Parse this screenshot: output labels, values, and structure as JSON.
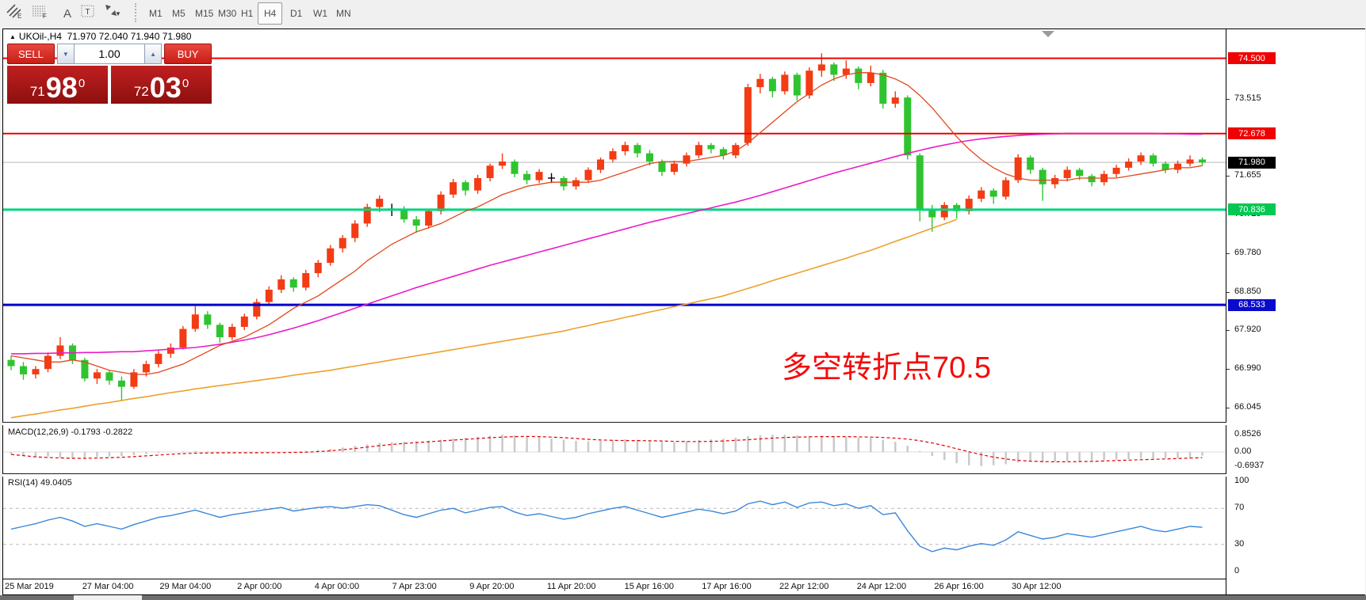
{
  "toolbar": {
    "tools": [
      {
        "name": "equidistant-channel-tool",
        "glyph": "E"
      },
      {
        "name": "fibonacci-tool",
        "glyph": "F"
      },
      {
        "name": "text-tool",
        "glyph": "A"
      },
      {
        "name": "text-label-tool",
        "glyph": "T"
      },
      {
        "name": "arrows-tool",
        "glyph": "arrows"
      }
    ],
    "timeframes": [
      "M1",
      "M5",
      "M15",
      "M30",
      "H1",
      "H4",
      "D1",
      "W1",
      "MN"
    ],
    "active_timeframe": "H4"
  },
  "chart_header": {
    "symbol": "UKOil-,H4",
    "ohlc": "71.970 72.040 71.940 71.980"
  },
  "trade_panel": {
    "sell_label": "SELL",
    "buy_label": "BUY",
    "volume": "1.00",
    "sell_price": {
      "small": "71",
      "big": "98",
      "sup": "0"
    },
    "buy_price": {
      "small": "72",
      "big": "03",
      "sup": "0"
    }
  },
  "annotation": {
    "text": "多空转折点70.5",
    "color": "#f40b0b"
  },
  "price_axis": {
    "ticks": [
      {
        "label": "73.515",
        "price": 73.515
      },
      {
        "label": "72.585",
        "price": 72.585,
        "partial": true
      },
      {
        "label": "71.655",
        "price": 71.655
      },
      {
        "label": "70.725",
        "price": 70.725,
        "partial": true
      },
      {
        "label": "69.780",
        "price": 69.78
      },
      {
        "label": "68.850",
        "price": 68.85
      },
      {
        "label": "67.920",
        "price": 67.92
      },
      {
        "label": "66.990",
        "price": 66.99
      },
      {
        "label": "66.045",
        "price": 66.045
      }
    ]
  },
  "levels": [
    {
      "label": "74.500",
      "price": 74.5,
      "line_color": "#f00000",
      "badge_color": "#f00000",
      "width": 2
    },
    {
      "label": "72.678",
      "price": 72.678,
      "line_color": "#f00000",
      "badge_color": "#f00000",
      "width": 2
    },
    {
      "label": "71.980",
      "price": 71.98,
      "line_color": "#b8b8b8",
      "badge_color": "#000000",
      "width": 1
    },
    {
      "label": "70.836",
      "price": 70.836,
      "line_color": "#00d57d",
      "badge_color": "#00c853",
      "width": 3
    },
    {
      "label": "68.533",
      "price": 68.533,
      "line_color": "#0000cc",
      "badge_color": "#0a0acd",
      "width": 3
    }
  ],
  "time_axis": {
    "labels": [
      "25 Mar 2019",
      "27 Mar 04:00",
      "29 Mar 04:00",
      "2 Apr 00:00",
      "4 Apr 00:00",
      "7 Apr 23:00",
      "9 Apr 20:00",
      "11 Apr 20:00",
      "15 Apr 16:00",
      "17 Apr 16:00",
      "22 Apr 12:00",
      "24 Apr 12:00",
      "26 Apr 16:00",
      "30 Apr 12:00"
    ]
  },
  "macd_panel": {
    "label": "MACD(12,26,9) -0.1793 -0.2822",
    "scale": [
      {
        "label": "0.8526",
        "value": 0.8526
      },
      {
        "label": "0.00",
        "value": 0
      },
      {
        "label": "-0.6937",
        "value": -0.6937
      }
    ]
  },
  "rsi_panel": {
    "label": "RSI(14) 49.0405",
    "scale": [
      {
        "label": "100",
        "value": 100
      },
      {
        "label": "70",
        "value": 70
      },
      {
        "label": "30",
        "value": 30
      },
      {
        "label": "0",
        "value": 0
      }
    ],
    "guide_levels": [
      70,
      30
    ]
  },
  "chart_data": {
    "type": "candlestick",
    "symbol": "UKOil-",
    "period": "H4",
    "ohlc_last": {
      "open": 71.97,
      "high": 72.04,
      "low": 71.94,
      "close": 71.98
    },
    "price_range_visible": [
      65.8,
      74.9
    ],
    "colors": {
      "bull": "#f33b14",
      "bear": "#2fc42f",
      "doji": "#000000",
      "ma_fast": "#e0481c",
      "ma_medium": "#ea1cc8",
      "ma_slow": "#eda12c",
      "macd_hist": "#c9c9c9",
      "macd_signal": "#e00000",
      "rsi_line": "#3a87d9"
    },
    "candles": [
      [
        67.2,
        67.3,
        66.95,
        67.05
      ],
      [
        67.05,
        67.15,
        66.72,
        66.85
      ],
      [
        66.85,
        67.05,
        66.75,
        66.98
      ],
      [
        66.98,
        67.38,
        66.9,
        67.3
      ],
      [
        67.3,
        67.75,
        67.22,
        67.55
      ],
      [
        67.55,
        67.6,
        67.1,
        67.2
      ],
      [
        67.2,
        67.25,
        66.68,
        66.75
      ],
      [
        66.75,
        66.98,
        66.62,
        66.9
      ],
      [
        66.9,
        66.95,
        66.6,
        66.7
      ],
      [
        66.7,
        66.8,
        66.2,
        66.55
      ],
      [
        66.55,
        66.98,
        66.5,
        66.9
      ],
      [
        66.9,
        67.18,
        66.8,
        67.1
      ],
      [
        67.1,
        67.42,
        67.02,
        67.35
      ],
      [
        67.35,
        67.6,
        67.25,
        67.5
      ],
      [
        67.5,
        68.02,
        67.45,
        67.95
      ],
      [
        67.95,
        68.5,
        67.88,
        68.3
      ],
      [
        68.3,
        68.38,
        67.95,
        68.05
      ],
      [
        68.05,
        68.1,
        67.62,
        67.75
      ],
      [
        67.75,
        68.08,
        67.68,
        68.0
      ],
      [
        68.0,
        68.32,
        67.92,
        68.25
      ],
      [
        68.25,
        68.68,
        68.18,
        68.6
      ],
      [
        68.6,
        68.98,
        68.52,
        68.9
      ],
      [
        68.9,
        69.25,
        68.82,
        69.15
      ],
      [
        69.15,
        69.2,
        68.85,
        68.95
      ],
      [
        68.95,
        69.38,
        68.88,
        69.3
      ],
      [
        69.3,
        69.62,
        69.2,
        69.55
      ],
      [
        69.55,
        69.98,
        69.48,
        69.9
      ],
      [
        69.9,
        70.22,
        69.8,
        70.15
      ],
      [
        70.15,
        70.58,
        70.05,
        70.5
      ],
      [
        70.5,
        70.98,
        70.42,
        70.9
      ],
      [
        70.9,
        71.18,
        70.78,
        71.1
      ],
      [
        70.85,
        70.98,
        70.68,
        70.85
      ],
      [
        70.85,
        70.92,
        70.52,
        70.6
      ],
      [
        70.6,
        70.68,
        70.28,
        70.45
      ],
      [
        70.45,
        70.85,
        70.38,
        70.8
      ],
      [
        70.8,
        71.28,
        70.72,
        71.2
      ],
      [
        71.2,
        71.58,
        71.12,
        71.5
      ],
      [
        71.5,
        71.55,
        71.18,
        71.3
      ],
      [
        71.3,
        71.68,
        71.22,
        71.6
      ],
      [
        71.6,
        71.95,
        71.52,
        71.9
      ],
      [
        71.9,
        72.2,
        71.82,
        72.0
      ],
      [
        72.0,
        72.05,
        71.62,
        71.7
      ],
      [
        71.7,
        71.78,
        71.45,
        71.55
      ],
      [
        71.55,
        71.82,
        71.48,
        71.75
      ],
      [
        71.6,
        71.72,
        71.48,
        71.6
      ],
      [
        71.6,
        71.65,
        71.3,
        71.4
      ],
      [
        71.4,
        71.62,
        71.32,
        71.55
      ],
      [
        71.55,
        71.86,
        71.48,
        71.8
      ],
      [
        71.8,
        72.1,
        71.72,
        72.05
      ],
      [
        72.05,
        72.32,
        71.98,
        72.25
      ],
      [
        72.25,
        72.48,
        72.15,
        72.4
      ],
      [
        72.4,
        72.45,
        72.1,
        72.2
      ],
      [
        72.2,
        72.28,
        71.9,
        72.0
      ],
      [
        72.0,
        72.05,
        71.65,
        71.75
      ],
      [
        71.75,
        72.02,
        71.68,
        71.95
      ],
      [
        71.95,
        72.22,
        71.88,
        72.15
      ],
      [
        72.15,
        72.48,
        72.08,
        72.4
      ],
      [
        72.4,
        72.45,
        72.2,
        72.3
      ],
      [
        72.3,
        72.35,
        72.05,
        72.15
      ],
      [
        72.15,
        72.45,
        72.08,
        72.4
      ],
      [
        72.45,
        73.88,
        72.38,
        73.8
      ],
      [
        73.8,
        74.12,
        73.65,
        74.0
      ],
      [
        74.0,
        74.05,
        73.55,
        73.7
      ],
      [
        73.7,
        74.18,
        73.62,
        74.1
      ],
      [
        74.1,
        74.15,
        73.48,
        73.6
      ],
      [
        73.6,
        74.28,
        73.52,
        74.2
      ],
      [
        74.2,
        74.62,
        74.05,
        74.35
      ],
      [
        74.35,
        74.4,
        73.95,
        74.1
      ],
      [
        74.1,
        74.45,
        74.0,
        74.25
      ],
      [
        74.25,
        74.3,
        73.75,
        73.9
      ],
      [
        73.9,
        74.32,
        73.82,
        74.15
      ],
      [
        74.15,
        74.22,
        73.28,
        73.4
      ],
      [
        73.4,
        73.7,
        73.3,
        73.55
      ],
      [
        73.55,
        73.6,
        72.05,
        72.15
      ],
      [
        72.15,
        72.2,
        70.55,
        70.85
      ],
      [
        70.85,
        70.95,
        70.3,
        70.65
      ],
      [
        70.65,
        71.02,
        70.58,
        70.95
      ],
      [
        70.95,
        71.0,
        70.62,
        70.8
      ],
      [
        70.8,
        71.18,
        70.72,
        71.1
      ],
      [
        71.1,
        71.38,
        71.02,
        71.3
      ],
      [
        71.3,
        71.35,
        70.98,
        71.15
      ],
      [
        71.15,
        71.62,
        71.08,
        71.55
      ],
      [
        71.55,
        72.18,
        71.48,
        72.1
      ],
      [
        72.1,
        72.15,
        71.7,
        71.8
      ],
      [
        71.8,
        71.85,
        71.05,
        71.45
      ],
      [
        71.45,
        71.68,
        71.35,
        71.6
      ],
      [
        71.6,
        71.88,
        71.52,
        71.8
      ],
      [
        71.8,
        71.85,
        71.55,
        71.65
      ],
      [
        71.65,
        71.7,
        71.4,
        71.5
      ],
      [
        71.5,
        71.78,
        71.42,
        71.7
      ],
      [
        71.7,
        71.92,
        71.62,
        71.85
      ],
      [
        71.85,
        72.08,
        71.78,
        72.0
      ],
      [
        72.0,
        72.22,
        71.92,
        72.15
      ],
      [
        72.15,
        72.2,
        71.88,
        71.95
      ],
      [
        71.95,
        72.0,
        71.72,
        71.8
      ],
      [
        71.8,
        72.02,
        71.72,
        71.95
      ],
      [
        71.95,
        72.15,
        71.88,
        72.05
      ],
      [
        72.05,
        72.1,
        71.9,
        71.98
      ]
    ],
    "ma_fast": [
      67.3,
      67.25,
      67.2,
      67.15,
      67.15,
      67.2,
      67.15,
      67.05,
      66.95,
      66.9,
      66.85,
      66.85,
      66.9,
      67.0,
      67.1,
      67.25,
      67.4,
      67.55,
      67.65,
      67.75,
      67.9,
      68.05,
      68.25,
      68.45,
      68.6,
      68.75,
      68.95,
      69.15,
      69.35,
      69.6,
      69.8,
      70.0,
      70.15,
      70.3,
      70.4,
      70.5,
      70.65,
      70.8,
      70.9,
      71.05,
      71.2,
      71.3,
      71.4,
      71.45,
      71.5,
      71.5,
      71.5,
      71.5,
      71.55,
      71.65,
      71.75,
      71.85,
      71.95,
      72.0,
      72.0,
      72.0,
      72.05,
      72.1,
      72.15,
      72.25,
      72.45,
      72.7,
      72.95,
      73.2,
      73.45,
      73.65,
      73.85,
      74.0,
      74.1,
      74.15,
      74.15,
      74.1,
      74.0,
      73.85,
      73.6,
      73.3,
      72.95,
      72.6,
      72.3,
      72.05,
      71.85,
      71.7,
      71.6,
      71.55,
      71.55,
      71.55,
      71.55,
      71.6,
      71.6,
      71.6,
      71.6,
      71.65,
      71.7,
      71.75,
      71.8,
      71.85,
      71.85,
      71.9
    ],
    "ma_medium": [
      67.35,
      67.35,
      67.36,
      67.36,
      67.37,
      67.37,
      67.38,
      67.38,
      67.39,
      67.4,
      67.4,
      67.42,
      67.44,
      67.46,
      67.48,
      67.5,
      67.54,
      67.58,
      67.63,
      67.68,
      67.74,
      67.81,
      67.89,
      67.97,
      68.06,
      68.15,
      68.25,
      68.35,
      68.45,
      68.55,
      68.65,
      68.75,
      68.85,
      68.95,
      69.04,
      69.13,
      69.22,
      69.31,
      69.4,
      69.49,
      69.57,
      69.65,
      69.73,
      69.81,
      69.89,
      69.97,
      70.05,
      70.13,
      70.21,
      70.29,
      70.37,
      70.45,
      70.53,
      70.6,
      70.67,
      70.74,
      70.81,
      70.88,
      70.95,
      71.02,
      71.1,
      71.18,
      71.27,
      71.36,
      71.45,
      71.54,
      71.63,
      71.72,
      71.8,
      71.88,
      71.96,
      72.04,
      72.12,
      72.2,
      72.27,
      72.34,
      72.4,
      72.46,
      72.51,
      72.55,
      72.58,
      72.61,
      72.63,
      72.65,
      72.66,
      72.67,
      72.68,
      72.68,
      72.68,
      72.68,
      72.68,
      72.68,
      72.68,
      72.68,
      72.67,
      72.67,
      72.66,
      72.66
    ],
    "ma_slow": [
      65.8,
      65.85,
      65.89,
      65.94,
      65.99,
      66.03,
      66.08,
      66.13,
      66.17,
      66.22,
      66.27,
      66.31,
      66.36,
      66.41,
      66.45,
      66.5,
      66.54,
      66.58,
      66.62,
      66.66,
      66.7,
      66.74,
      66.78,
      66.83,
      66.87,
      66.91,
      66.95,
      67.0,
      67.05,
      67.1,
      67.15,
      67.2,
      67.25,
      67.3,
      67.35,
      67.4,
      67.45,
      67.5,
      67.55,
      67.6,
      67.65,
      67.7,
      67.75,
      67.8,
      67.85,
      67.9,
      67.97,
      68.03,
      68.1,
      68.16,
      68.23,
      68.29,
      68.36,
      68.42,
      68.49,
      68.55,
      68.62,
      68.68,
      68.75,
      68.84,
      68.93,
      69.02,
      69.12,
      69.21,
      69.3,
      69.39,
      69.48,
      69.57,
      69.66,
      69.76,
      69.85,
      69.96,
      70.07,
      70.17,
      70.28,
      70.39,
      70.49,
      70.6,
      null,
      null,
      null,
      null,
      null,
      null,
      null,
      null,
      null,
      null,
      null,
      null,
      null,
      null,
      null,
      null,
      null,
      null,
      null,
      null
    ],
    "macd_histogram": [
      -0.1,
      -0.2,
      -0.25,
      -0.22,
      -0.28,
      -0.3,
      -0.28,
      -0.25,
      -0.22,
      -0.2,
      -0.15,
      -0.1,
      -0.05,
      0.0,
      0.03,
      0.05,
      0.03,
      0.0,
      -0.02,
      -0.03,
      -0.02,
      0.0,
      0.02,
      0.0,
      0.05,
      0.1,
      0.15,
      0.22,
      0.3,
      0.38,
      0.45,
      0.48,
      0.5,
      0.52,
      0.55,
      0.6,
      0.66,
      0.7,
      0.75,
      0.8,
      0.85,
      0.82,
      0.78,
      0.72,
      0.66,
      0.6,
      0.55,
      0.52,
      0.55,
      0.6,
      0.62,
      0.6,
      0.55,
      0.5,
      0.48,
      0.52,
      0.58,
      0.62,
      0.65,
      0.7,
      0.78,
      0.82,
      0.85,
      0.84,
      0.8,
      0.78,
      0.8,
      0.78,
      0.75,
      0.7,
      0.68,
      0.6,
      0.5,
      0.3,
      0.05,
      -0.2,
      -0.4,
      -0.55,
      -0.65,
      -0.69,
      -0.65,
      -0.6,
      -0.52,
      -0.48,
      -0.5,
      -0.48,
      -0.45,
      -0.45,
      -0.42,
      -0.4,
      -0.38,
      -0.35,
      -0.32,
      -0.32,
      -0.3,
      -0.3,
      -0.29,
      -0.18
    ],
    "macd_signal": [
      -0.12,
      -0.18,
      -0.24,
      -0.27,
      -0.29,
      -0.31,
      -0.31,
      -0.3,
      -0.28,
      -0.26,
      -0.23,
      -0.19,
      -0.15,
      -0.11,
      -0.08,
      -0.06,
      -0.05,
      -0.04,
      -0.04,
      -0.04,
      -0.04,
      -0.03,
      -0.03,
      -0.02,
      -0.01,
      0.02,
      0.06,
      0.11,
      0.17,
      0.24,
      0.31,
      0.37,
      0.42,
      0.46,
      0.5,
      0.54,
      0.58,
      0.62,
      0.66,
      0.7,
      0.73,
      0.75,
      0.76,
      0.75,
      0.73,
      0.7,
      0.66,
      0.62,
      0.59,
      0.57,
      0.56,
      0.56,
      0.55,
      0.54,
      0.52,
      0.51,
      0.51,
      0.52,
      0.54,
      0.57,
      0.6,
      0.64,
      0.68,
      0.71,
      0.73,
      0.74,
      0.75,
      0.75,
      0.75,
      0.74,
      0.73,
      0.71,
      0.68,
      0.63,
      0.55,
      0.44,
      0.31,
      0.16,
      0.01,
      -0.13,
      -0.25,
      -0.34,
      -0.41,
      -0.45,
      -0.47,
      -0.48,
      -0.48,
      -0.47,
      -0.46,
      -0.44,
      -0.42,
      -0.4,
      -0.38,
      -0.36,
      -0.34,
      -0.32,
      -0.3,
      -0.28
    ],
    "rsi_values": [
      47,
      50,
      53,
      57,
      60,
      56,
      50,
      53,
      50,
      47,
      52,
      56,
      60,
      62,
      65,
      68,
      64,
      60,
      63,
      65,
      67,
      69,
      71,
      67,
      69,
      71,
      72,
      70,
      72,
      74,
      73,
      68,
      63,
      60,
      64,
      68,
      70,
      65,
      68,
      71,
      72,
      66,
      62,
      64,
      61,
      58,
      60,
      64,
      67,
      70,
      72,
      68,
      64,
      60,
      63,
      66,
      69,
      67,
      64,
      67,
      75,
      78,
      74,
      77,
      71,
      76,
      77,
      73,
      75,
      70,
      73,
      63,
      65,
      45,
      28,
      22,
      26,
      24,
      28,
      31,
      29,
      35,
      44,
      40,
      36,
      38,
      42,
      40,
      38,
      41,
      44,
      47,
      50,
      46,
      44,
      47,
      50,
      49
    ]
  }
}
